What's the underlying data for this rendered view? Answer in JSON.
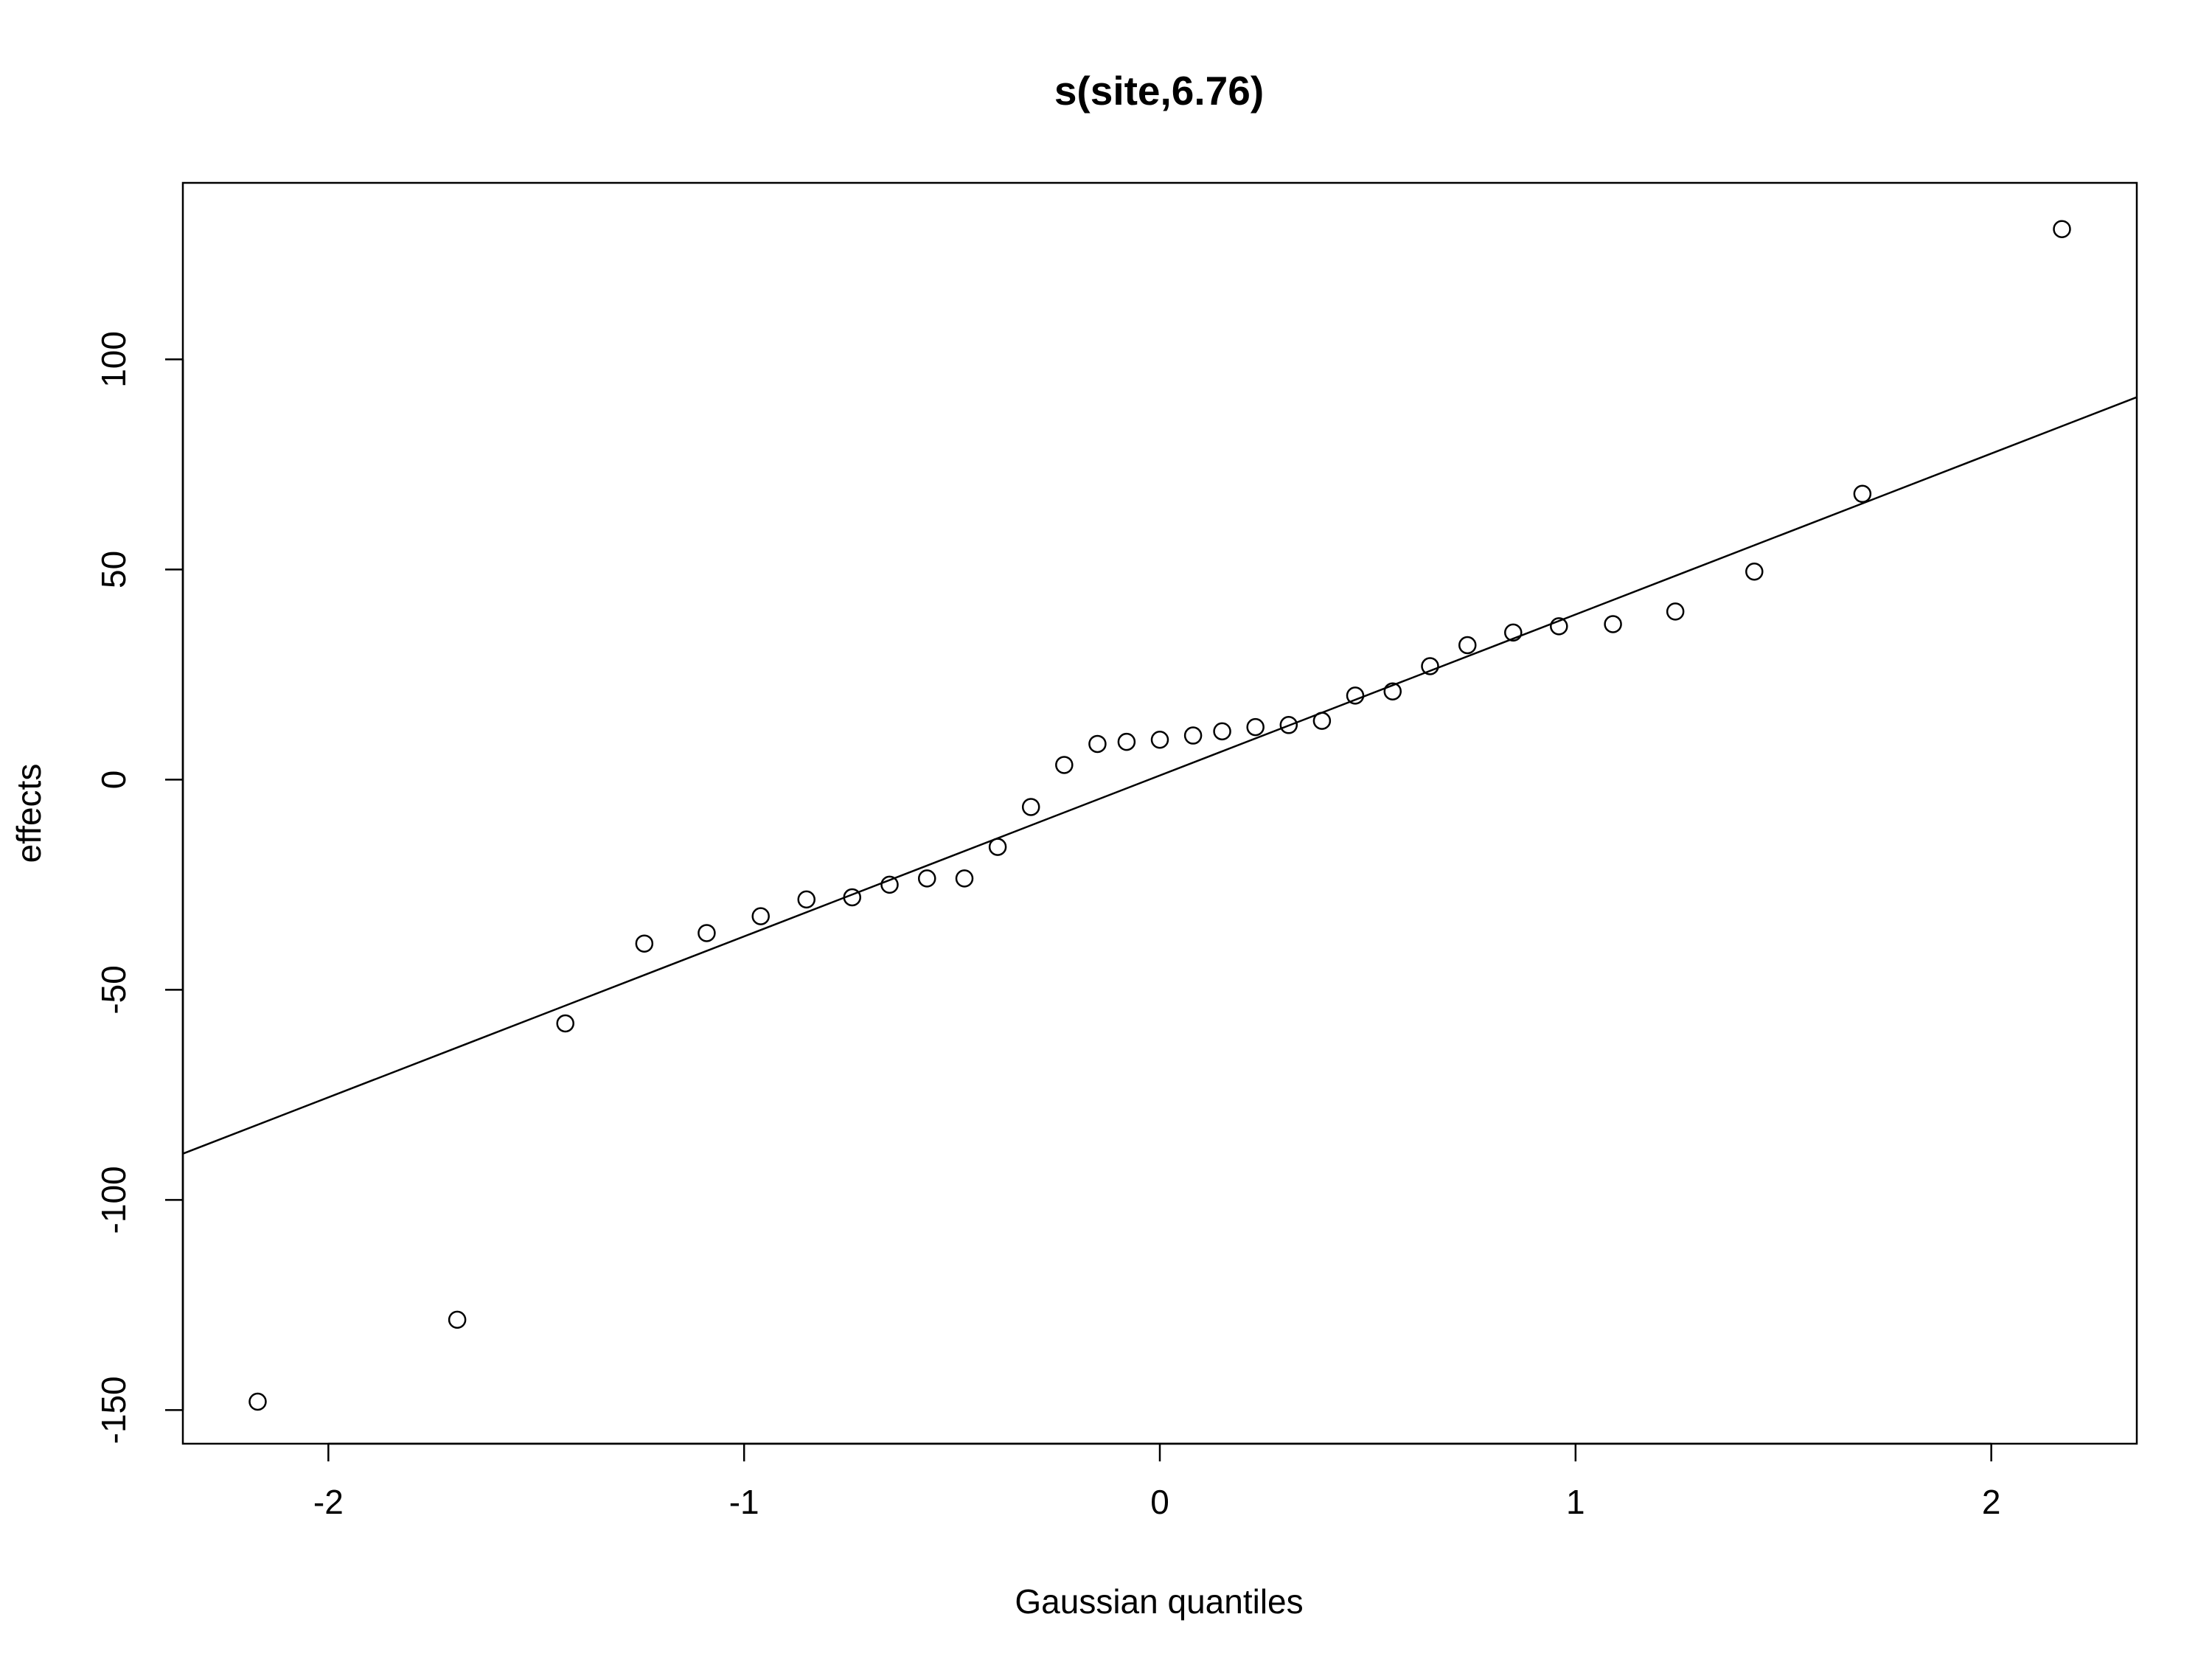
{
  "chart_data": {
    "type": "scatter",
    "title": "s(site,6.76)",
    "xlabel": "Gaussian quantiles",
    "ylabel": "effects",
    "xlim": [
      -2.35,
      2.35
    ],
    "ylim": [
      -158,
      142
    ],
    "x_ticks": [
      -2,
      -1,
      0,
      1,
      2
    ],
    "x_tick_labels": [
      "-2",
      "-1",
      "0",
      "1",
      "2"
    ],
    "y_ticks": [
      -150,
      -100,
      -50,
      0,
      50,
      100
    ],
    "y_tick_labels": [
      "-150",
      "-100",
      "-50",
      "0",
      "50",
      "100"
    ],
    "grid": false,
    "legend": "none",
    "points": [
      {
        "x": -2.17,
        "y": -148
      },
      {
        "x": -1.69,
        "y": -128.5
      },
      {
        "x": -1.43,
        "y": -58
      },
      {
        "x": -1.24,
        "y": -39
      },
      {
        "x": -1.09,
        "y": -36.5
      },
      {
        "x": -0.96,
        "y": -32.5
      },
      {
        "x": -0.85,
        "y": -28.5
      },
      {
        "x": -0.74,
        "y": -28
      },
      {
        "x": -0.65,
        "y": -25
      },
      {
        "x": -0.56,
        "y": -23.5
      },
      {
        "x": -0.47,
        "y": -23.5
      },
      {
        "x": -0.39,
        "y": -16
      },
      {
        "x": -0.31,
        "y": -6.5
      },
      {
        "x": -0.23,
        "y": 3.5
      },
      {
        "x": -0.15,
        "y": 8.5
      },
      {
        "x": -0.08,
        "y": 9
      },
      {
        "x": 0.0,
        "y": 9.5
      },
      {
        "x": 0.08,
        "y": 10.5
      },
      {
        "x": 0.15,
        "y": 11.5
      },
      {
        "x": 0.23,
        "y": 12.5
      },
      {
        "x": 0.31,
        "y": 13
      },
      {
        "x": 0.39,
        "y": 14
      },
      {
        "x": 0.47,
        "y": 20
      },
      {
        "x": 0.56,
        "y": 21
      },
      {
        "x": 0.65,
        "y": 27
      },
      {
        "x": 0.74,
        "y": 32
      },
      {
        "x": 0.85,
        "y": 35
      },
      {
        "x": 0.96,
        "y": 36.5
      },
      {
        "x": 1.09,
        "y": 37
      },
      {
        "x": 1.24,
        "y": 40
      },
      {
        "x": 1.43,
        "y": 49.5
      },
      {
        "x": 1.69,
        "y": 68
      },
      {
        "x": 2.17,
        "y": 131
      }
    ],
    "reference_line": {
      "from": [
        -2.35,
        -89
      ],
      "to": [
        2.35,
        91
      ]
    },
    "colors": {
      "points": "#000000",
      "line": "#000000",
      "background": "#ffffff"
    }
  }
}
